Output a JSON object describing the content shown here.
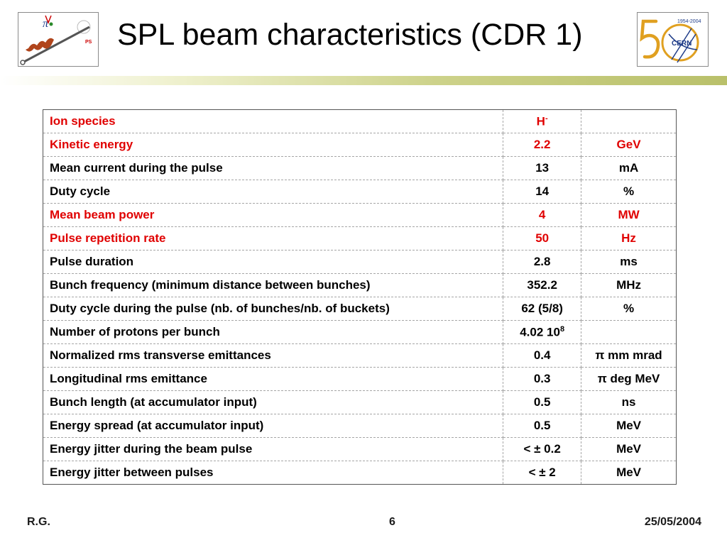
{
  "slide": {
    "title": "SPL beam characteristics (CDR 1)",
    "logos": {
      "left_text": "PS",
      "right_text": "CERN",
      "right_years": "1954-2004"
    }
  },
  "table": {
    "rows": [
      {
        "param": "Ion species",
        "value": "H",
        "value_sup": "-",
        "unit": "",
        "highlight": true
      },
      {
        "param": "Kinetic energy",
        "value": "2.2",
        "value_sup": "",
        "unit": "GeV",
        "highlight": true
      },
      {
        "param": "Mean current during the pulse",
        "value": "13",
        "value_sup": "",
        "unit": "mA",
        "highlight": false
      },
      {
        "param": "Duty cycle",
        "value": "14",
        "value_sup": "",
        "unit": "%",
        "highlight": false
      },
      {
        "param": "Mean beam power",
        "value": "4",
        "value_sup": "",
        "unit": "MW",
        "highlight": true
      },
      {
        "param": "Pulse repetition rate",
        "value": "50",
        "value_sup": "",
        "unit": "Hz",
        "highlight": true
      },
      {
        "param": "Pulse duration",
        "value": "2.8",
        "value_sup": "",
        "unit": "ms",
        "highlight": false
      },
      {
        "param": "Bunch frequency (minimum distance between bunches)",
        "value": "352.2",
        "value_sup": "",
        "unit": "MHz",
        "highlight": false
      },
      {
        "param": "Duty cycle during the pulse (nb. of bunches/nb. of buckets)",
        "value": "62 (5/8)",
        "value_sup": "",
        "unit": "%",
        "highlight": false
      },
      {
        "param": "Number of protons per bunch",
        "value": "4.02 10",
        "value_sup": "8",
        "unit": "",
        "highlight": false
      },
      {
        "param": "Normalized rms transverse emittances",
        "value": "0.4",
        "value_sup": "",
        "unit": "π mm mrad",
        "highlight": false
      },
      {
        "param": "Longitudinal rms emittance",
        "value": "0.3",
        "value_sup": "",
        "unit": "π deg MeV",
        "highlight": false
      },
      {
        "param": "Bunch length (at accumulator input)",
        "value": "0.5",
        "value_sup": "",
        "unit": "ns",
        "highlight": false
      },
      {
        "param": "Energy spread (at accumulator input)",
        "value": "0.5",
        "value_sup": "",
        "unit": "MeV",
        "highlight": false
      },
      {
        "param": "Energy jitter during the beam pulse",
        "value": "< ± 0.2",
        "value_sup": "",
        "unit": "MeV",
        "highlight": false
      },
      {
        "param": "Energy jitter between pulses",
        "value": "< ± 2",
        "value_sup": "",
        "unit": "MeV",
        "highlight": false
      }
    ]
  },
  "footer": {
    "author": "R.G.",
    "page": "6",
    "date": "25/05/2004"
  },
  "colors": {
    "highlight": "#e00000",
    "accent_bar": "#b9c06a"
  }
}
